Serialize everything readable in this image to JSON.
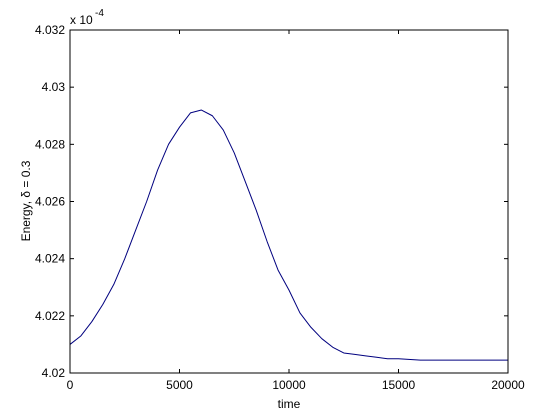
{
  "chart_data": {
    "type": "line",
    "xlabel": "time",
    "ylabel": "Energy, δ = 0.3",
    "y_multiplier_label": "x 10",
    "y_multiplier_exponent": "-4",
    "xlim": [
      0,
      20000
    ],
    "ylim": [
      4.02,
      4.032
    ],
    "x_ticks": [
      0,
      5000,
      10000,
      15000,
      20000
    ],
    "x_tick_labels": [
      "0",
      "5000",
      "10000",
      "15000",
      "20000"
    ],
    "y_ticks": [
      4.02,
      4.022,
      4.024,
      4.026,
      4.028,
      4.03,
      4.032
    ],
    "y_tick_labels": [
      "4.02",
      "4.022",
      "4.024",
      "4.026",
      "4.028",
      "4.03",
      "4.032"
    ],
    "grid": false,
    "line_color": "#00007f",
    "series": [
      {
        "x": [
          0,
          500,
          1000,
          1500,
          2000,
          2500,
          3000,
          3500,
          4000,
          4500,
          5000,
          5500,
          6000,
          6500,
          7000,
          7500,
          8000,
          8500,
          9000,
          9500,
          10000,
          10500,
          11000,
          11500,
          12000,
          12500,
          13000,
          13500,
          14000,
          14500,
          15000,
          16000,
          17000,
          18000,
          19000,
          20000
        ],
        "y": [
          4.021,
          4.0213,
          4.0218,
          4.0224,
          4.0231,
          4.024,
          4.025,
          4.026,
          4.0271,
          4.028,
          4.0286,
          4.0291,
          4.0292,
          4.029,
          4.0285,
          4.0277,
          4.0267,
          4.0257,
          4.0246,
          4.0236,
          4.0229,
          4.0221,
          4.0216,
          4.0212,
          4.0209,
          4.0207,
          4.02065,
          4.0206,
          4.02055,
          4.0205,
          4.0205,
          4.02045,
          4.02045,
          4.02045,
          4.02045,
          4.02045
        ]
      }
    ]
  }
}
